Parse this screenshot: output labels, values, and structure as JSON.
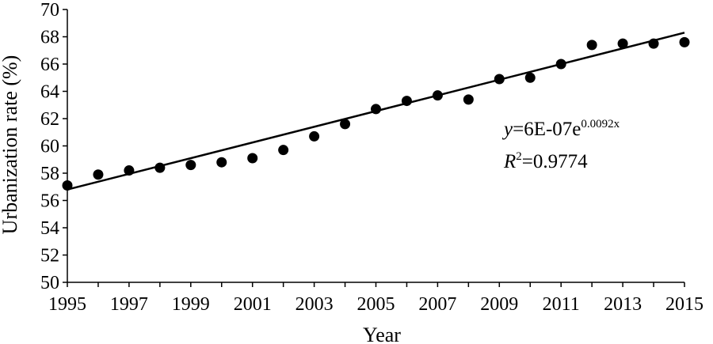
{
  "chart_data": {
    "type": "scatter",
    "xlabel": "Year",
    "ylabel": "Urbanization rate (%)",
    "xlim": [
      1995,
      2015
    ],
    "ylim": [
      50,
      70
    ],
    "x_ticks": [
      1995,
      1997,
      1999,
      2001,
      2003,
      2005,
      2007,
      2009,
      2011,
      2013,
      2015
    ],
    "y_ticks": [
      50,
      52,
      54,
      56,
      58,
      60,
      62,
      64,
      66,
      68,
      70
    ],
    "grid": false,
    "legend": "none",
    "series": [
      {
        "x": [
          1995,
          1996,
          1997,
          1998,
          1999,
          2000,
          2001,
          2002,
          2003,
          2004,
          2005,
          2006,
          2007,
          2008,
          2009,
          2010,
          2011,
          2012,
          2013,
          2014,
          2015
        ],
        "y": [
          57.1,
          57.9,
          58.2,
          58.4,
          58.6,
          58.8,
          59.1,
          59.7,
          60.7,
          61.6,
          62.7,
          63.3,
          63.7,
          63.4,
          64.9,
          65.0,
          66.0,
          67.4,
          67.5,
          67.5,
          67.6
        ]
      }
    ],
    "trendline": {
      "type": "exponential",
      "x_range": [
        1995,
        2015
      ],
      "y_at_start": 56.8,
      "y_at_end": 68.3
    },
    "annotations": {
      "equation_var": "y",
      "equation_rest": "=6E-07e",
      "equation_exp": "0.0092x",
      "r2_var": "R",
      "r2_sup": "2",
      "r2_rest": "=0.9774"
    },
    "colors": {
      "markers": "#000000",
      "trendline": "#000000",
      "axes": "#000000"
    }
  }
}
